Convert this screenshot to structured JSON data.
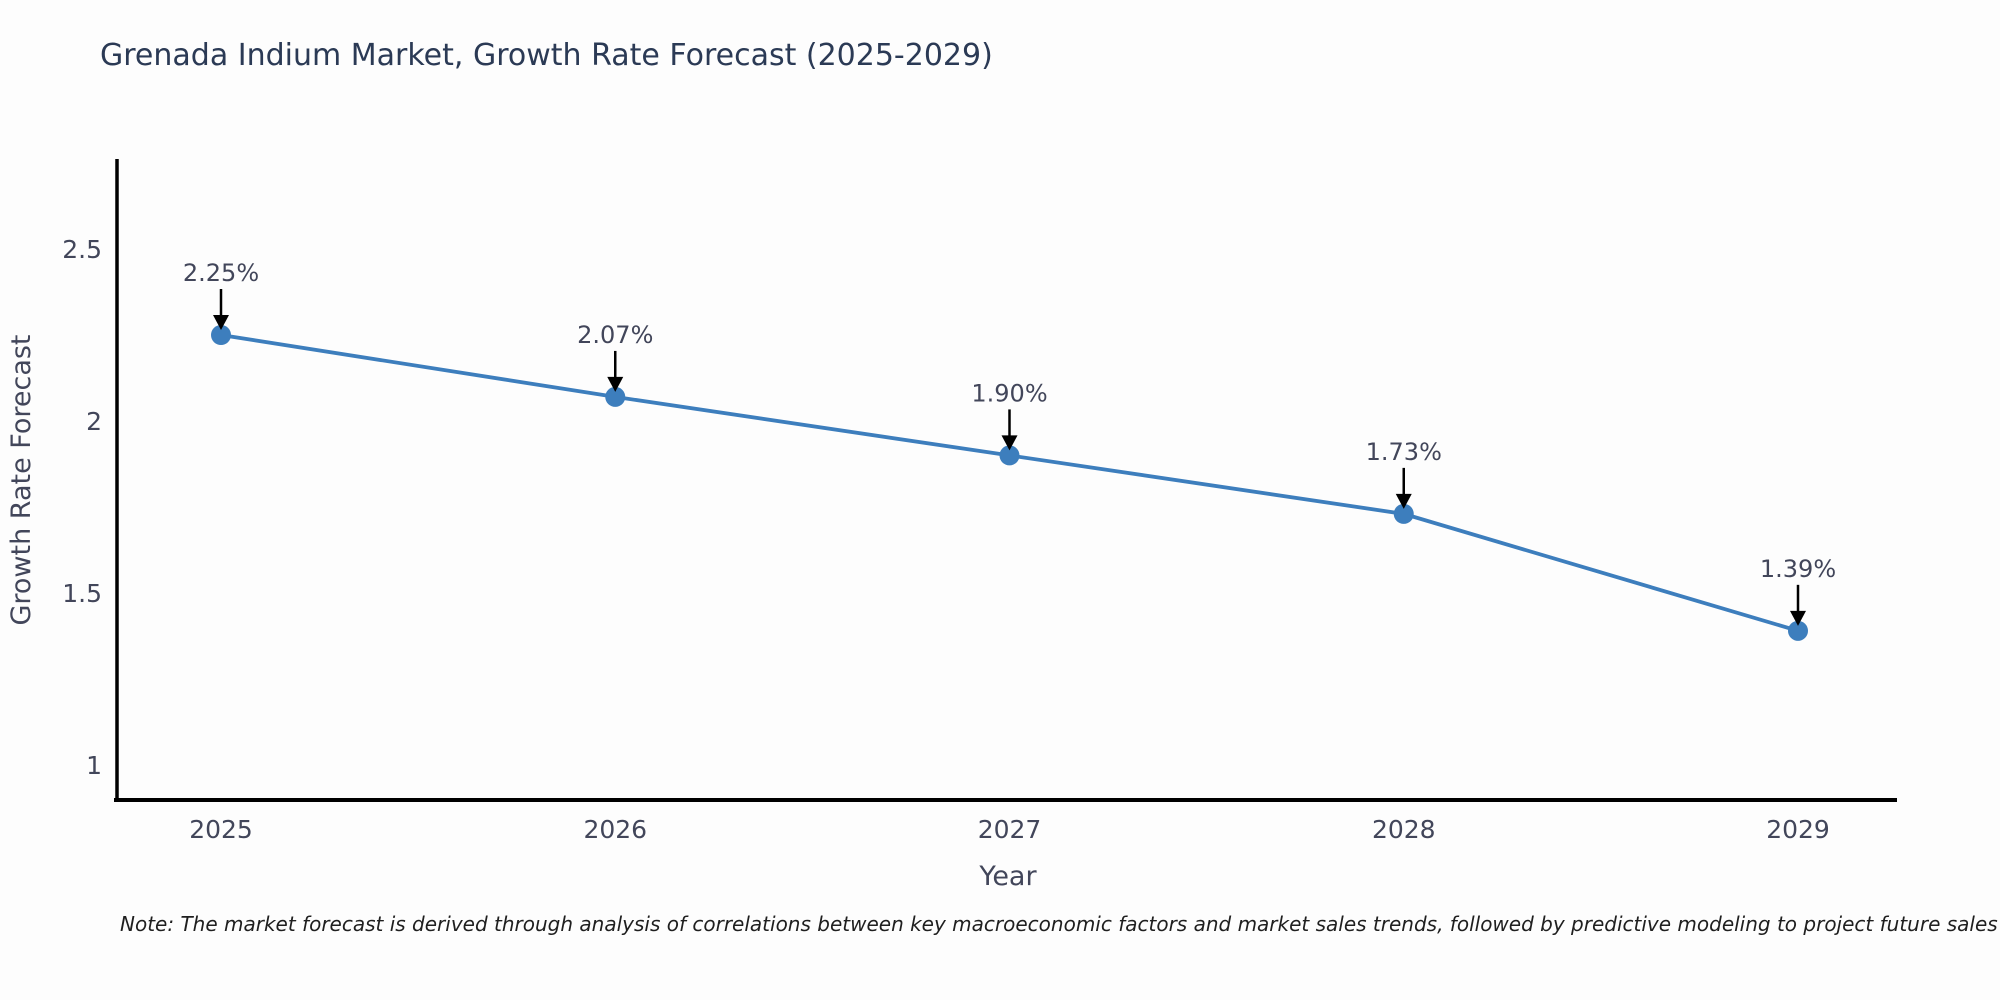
{
  "title": "Grenada Indium Market, Growth Rate Forecast (2025-2029)",
  "note": "Note: The market forecast is derived through analysis of correlations between key macroeconomic factors and market sales trends, followed by predictive modeling to project future sales",
  "chart_data": {
    "type": "line",
    "title": "Grenada Indium Market, Growth Rate Forecast (2025-2029)",
    "xlabel": "Year",
    "ylabel": "Growth Rate Forecast",
    "x_labels": [
      "2025",
      "2026",
      "2027",
      "2028",
      "2029"
    ],
    "x": [
      2025,
      2026,
      2027,
      2028,
      2029
    ],
    "values": [
      2.25,
      2.07,
      1.9,
      1.73,
      1.39
    ],
    "point_labels": [
      "2.25%",
      "2.07%",
      "1.90%",
      "1.73%",
      "1.39%"
    ],
    "ytick_labels": [
      "1",
      "1.5",
      "2",
      "2.5"
    ],
    "yticks": [
      1,
      1.5,
      2,
      2.5
    ],
    "ylim": [
      0.9,
      2.77
    ],
    "grid": false,
    "legend_position": "none",
    "line_color": "#3d7ebd",
    "marker_color": "#3d7ebd",
    "axis_color": "#000000",
    "tick_label_color": "#42465a",
    "title_color": "#2b3a55",
    "annotation_color": "#42465a",
    "arrow_color": "#000000"
  }
}
